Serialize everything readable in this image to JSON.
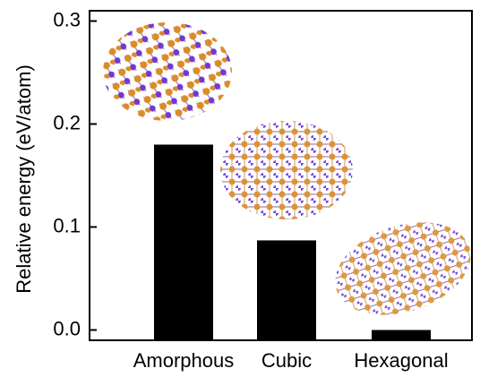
{
  "chart_data": {
    "type": "bar",
    "y_label": "Relative energy (eV/atom)",
    "categories": [
      "Amorphous",
      "Cubic",
      "Hexagonal"
    ],
    "values": [
      0.18,
      0.087,
      0.0
    ],
    "color": "#000000",
    "ylim": [
      -0.01,
      0.31
    ],
    "yticks": [
      {
        "value": 0,
        "label": "0.0"
      },
      0.1,
      0.2,
      0.3
    ]
  }
}
